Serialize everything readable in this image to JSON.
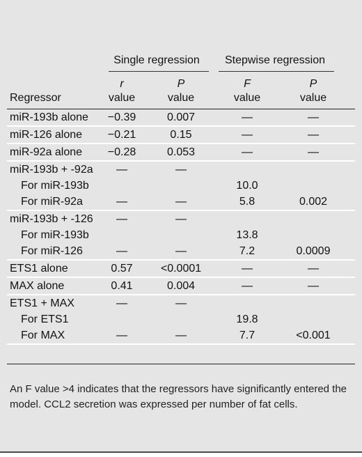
{
  "group_headers": {
    "single": "Single regression",
    "stepwise": "Stepwise regression"
  },
  "columns": {
    "regressor": "Regressor",
    "r_value": {
      "top": "r",
      "bottom": "value"
    },
    "p_value_single": {
      "top": "P",
      "bottom": "value"
    },
    "f_value": {
      "top": "F",
      "bottom": "value"
    },
    "p_value_stepwise": {
      "top": "P",
      "bottom": "value"
    }
  },
  "rows": [
    {
      "lines": [
        {
          "label": "miR-193b alone",
          "indent": false,
          "r": "−0.39",
          "p1": "0.007",
          "f": "—",
          "p2": "—"
        }
      ]
    },
    {
      "lines": [
        {
          "label": "miR-126 alone",
          "indent": false,
          "r": "−0.21",
          "p1": "0.15",
          "f": "—",
          "p2": "—"
        }
      ]
    },
    {
      "lines": [
        {
          "label": "miR-92a alone",
          "indent": false,
          "r": "−0.28",
          "p1": "0.053",
          "f": "—",
          "p2": "—"
        }
      ]
    },
    {
      "lines": [
        {
          "label": "miR-193b + -92a",
          "indent": false,
          "r": "—",
          "p1": "—",
          "f": "",
          "p2": ""
        },
        {
          "label": "For miR-193b",
          "indent": true,
          "r": "",
          "p1": "",
          "f": "10.0",
          "p2": ""
        },
        {
          "label": "For miR-92a",
          "indent": true,
          "r": "—",
          "p1": "—",
          "f": "5.8",
          "p2": "0.002"
        }
      ]
    },
    {
      "lines": [
        {
          "label": "miR-193b + -126",
          "indent": false,
          "r": "—",
          "p1": "—",
          "f": "",
          "p2": ""
        },
        {
          "label": "For miR-193b",
          "indent": true,
          "r": "",
          "p1": "",
          "f": "13.8",
          "p2": ""
        },
        {
          "label": "For miR-126",
          "indent": true,
          "r": "—",
          "p1": "—",
          "f": "7.2",
          "p2": "0.0009"
        }
      ]
    },
    {
      "lines": [
        {
          "label": "ETS1 alone",
          "indent": false,
          "r": "0.57",
          "p1": "<0.0001",
          "f": "—",
          "p2": "—"
        }
      ]
    },
    {
      "lines": [
        {
          "label": "MAX alone",
          "indent": false,
          "r": "0.41",
          "p1": "0.004",
          "f": "—",
          "p2": "—"
        }
      ]
    },
    {
      "lines": [
        {
          "label": "ETS1 + MAX",
          "indent": false,
          "r": "—",
          "p1": "—",
          "f": "",
          "p2": ""
        },
        {
          "label": "For ETS1",
          "indent": true,
          "r": "",
          "p1": "",
          "f": "19.8",
          "p2": ""
        },
        {
          "label": "For MAX",
          "indent": true,
          "r": "—",
          "p1": "—",
          "f": "7.7",
          "p2": "<0.001"
        }
      ]
    }
  ],
  "footnote": "An F value >4 indicates that the regressors have significantly entered the model. CCL2 secretion was expressed per number of fat cells."
}
